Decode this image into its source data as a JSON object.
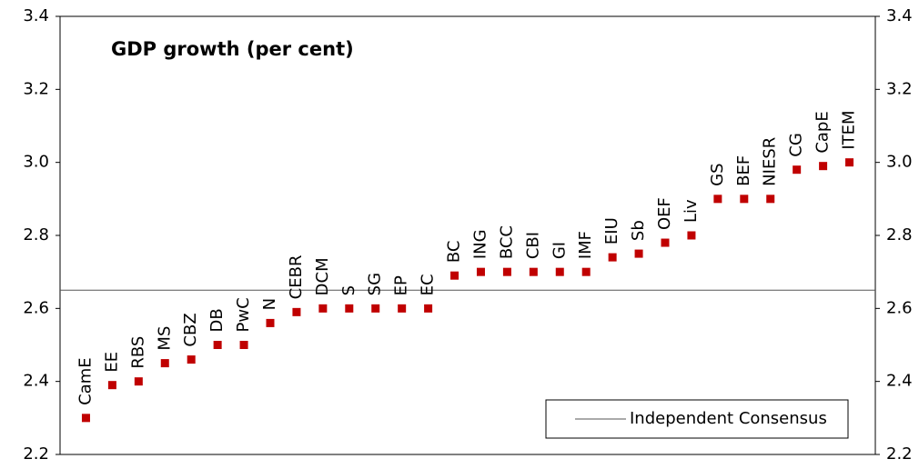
{
  "chart_data": {
    "type": "scatter",
    "title": "GDP growth (per cent)",
    "categories": [
      "CamE",
      "EE",
      "RBS",
      "MS",
      "CBZ",
      "DB",
      "PwC",
      "N",
      "CEBR",
      "DCM",
      "S",
      "SG",
      "EP",
      "EC",
      "BC",
      "ING",
      "BCC",
      "CBI",
      "GI",
      "IMF",
      "EIU",
      "Sb",
      "OEF",
      "Liv",
      "GS",
      "BEF",
      "NIESR",
      "CG",
      "CapE",
      "ITEM"
    ],
    "values": [
      2.3,
      2.39,
      2.4,
      2.45,
      2.46,
      2.5,
      2.5,
      2.56,
      2.59,
      2.6,
      2.6,
      2.6,
      2.6,
      2.6,
      2.69,
      2.7,
      2.7,
      2.7,
      2.7,
      2.7,
      2.74,
      2.75,
      2.78,
      2.8,
      2.9,
      2.9,
      2.9,
      2.98,
      2.99,
      3.0
    ],
    "color": "#c00000",
    "reference_lines": [
      {
        "name": "Independent Consensus",
        "value": 2.65,
        "color": "#555555"
      }
    ],
    "legend": "lower right",
    "ylim": [
      2.2,
      3.4
    ],
    "yticks": [
      2.2,
      2.4,
      2.6,
      2.8,
      {
        "value": 3,
        "label": "3.0"
      },
      3.2,
      3.4
    ],
    "y2lim": [
      2.2,
      3.4
    ],
    "y2ticks": [
      2.2,
      2.4,
      2.6,
      2.8,
      {
        "value": 3,
        "label": "3.0"
      },
      3.2,
      3.4
    ]
  }
}
